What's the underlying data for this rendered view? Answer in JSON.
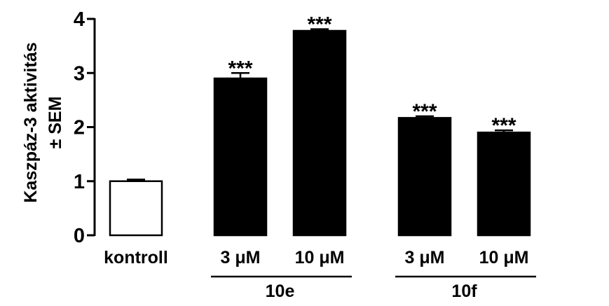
{
  "chart_data": {
    "type": "bar",
    "ylabel_line1": "Kaszpáz-3 aktivitás",
    "ylabel_line2": "± SEM",
    "ylim": [
      0,
      4
    ],
    "yticks": [
      "0",
      "1",
      "2",
      "3",
      "4"
    ],
    "categories": [
      "kontroll",
      "3 μM",
      "10 μM",
      "3 μM",
      "10 μM"
    ],
    "values": [
      1.0,
      2.9,
      3.78,
      2.17,
      1.9
    ],
    "errors": [
      0.03,
      0.1,
      0.03,
      0.03,
      0.04
    ],
    "significance": [
      "",
      "***",
      "***",
      "***",
      "***"
    ],
    "fills": [
      "#ffffff",
      "#000000",
      "#000000",
      "#000000",
      "#000000"
    ],
    "groups": [
      {
        "label": "10e",
        "members": [
          1,
          2
        ]
      },
      {
        "label": "10f",
        "members": [
          3,
          4
        ]
      }
    ]
  }
}
